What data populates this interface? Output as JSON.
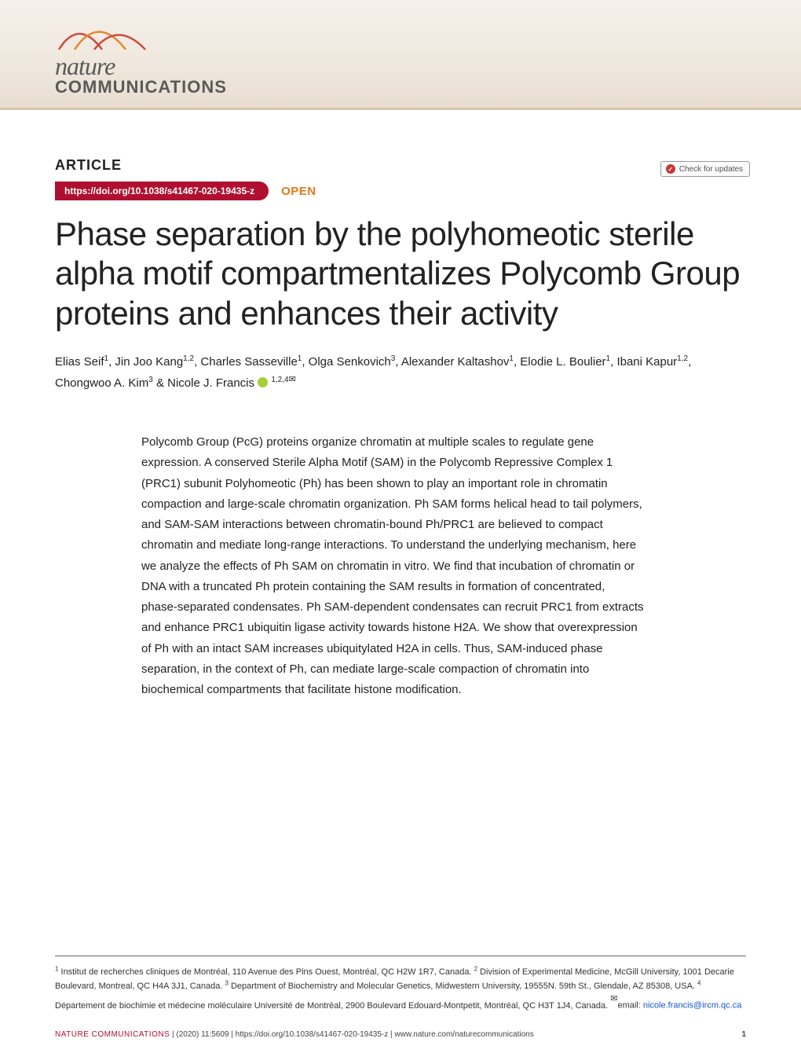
{
  "branding": {
    "logo_line1": "nature",
    "logo_line2": "COMMUNICATIONS",
    "arc_colors": [
      "#c94d3a",
      "#e08a2e",
      "#c94d3a"
    ]
  },
  "check_updates": {
    "label": "Check for updates"
  },
  "article_label": "ARTICLE",
  "doi": "https://doi.org/10.1038/s41467-020-19435-z",
  "open_label": "OPEN",
  "title": "Phase separation by the polyhomeotic sterile alpha motif compartmentalizes Polycomb Group proteins and enhances their activity",
  "authors_html": "Elias Seif<sup>1</sup>, Jin Joo Kang<sup>1,2</sup>, Charles Sasseville<sup>1</sup>, Olga Senkovich<sup>3</sup>, Alexander Kaltashov<sup>1</sup>, Elodie L. Boulier<sup>1</sup>, Ibani Kapur<sup>1,2</sup>, Chongwoo A. Kim<sup>3</sup> & Nicole J. Francis",
  "corresponding_sup": "1,2,4",
  "abstract": "Polycomb Group (PcG) proteins organize chromatin at multiple scales to regulate gene expression. A conserved Sterile Alpha Motif (SAM) in the Polycomb Repressive Complex 1 (PRC1) subunit Polyhomeotic (Ph) has been shown to play an important role in chromatin compaction and large-scale chromatin organization. Ph SAM forms helical head to tail polymers, and SAM-SAM interactions between chromatin-bound Ph/PRC1 are believed to compact chromatin and mediate long-range interactions. To understand the underlying mechanism, here we analyze the effects of Ph SAM on chromatin in vitro. We find that incubation of chromatin or DNA with a truncated Ph protein containing the SAM results in formation of concentrated, phase-separated condensates. Ph SAM-dependent condensates can recruit PRC1 from extracts and enhance PRC1 ubiquitin ligase activity towards histone H2A. We show that overexpression of Ph with an intact SAM increases ubiquitylated H2A in cells. Thus, SAM-induced phase separation, in the context of Ph, can mediate large-scale compaction of chromatin into biochemical compartments that facilitate histone modification.",
  "affiliations_html": "<sup>1</sup> Institut de recherches cliniques de Montréal, 110 Avenue des Pins Ouest, Montréal, QC H2W 1R7, Canada. <sup>2</sup> Division of Experimental Medicine, McGill University, 1001 Decarie Boulevard, Montreal, QC H4A 3J1, Canada. <sup>3</sup> Department of Biochemistry and Molecular Genetics, Midwestern University, 19555N. 59th St., Glendale, AZ 85308, USA. <sup>4</sup> Département de biochimie et médecine moléculaire Université de Montréal, 2900 Boulevard Edouard-Montpetit, Montréal, QC H3T 1J4, Canada. ",
  "email_label": "email: ",
  "email": "nicole.francis@ircm.qc.ca",
  "footer": {
    "journal": "NATURE COMMUNICATIONS",
    "citation": " |         (2020) 11:5609 | https://doi.org/10.1038/s41467-020-19435-z | www.nature.com/naturecommunications",
    "page": "1"
  },
  "colors": {
    "doi_pill": "#b01030",
    "open": "#e67817",
    "header_grad_top": "#f5f0eb",
    "header_grad_bottom": "#e8ddd0",
    "link": "#1155cc",
    "orcid": "#a6ce39"
  }
}
